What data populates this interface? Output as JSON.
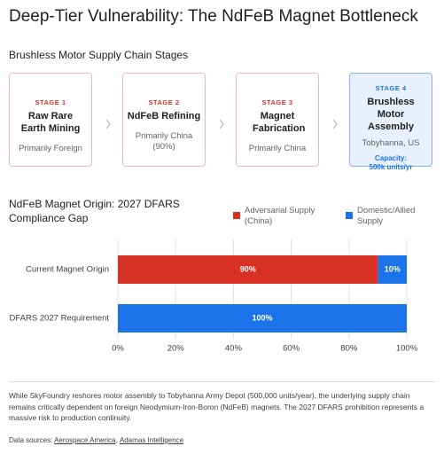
{
  "title": "Deep-Tier Vulnerability: The NdFeB Magnet Bottleneck",
  "stages_section": {
    "title": "Brushless Motor Supply Chain Stages",
    "stages": [
      {
        "label": "STAGE 1",
        "name": "Raw Rare Earth Mining",
        "origin": "Primarily Foreign"
      },
      {
        "label": "STAGE 2",
        "name": "NdFeB Refining",
        "origin": "Primarily China (90%)"
      },
      {
        "label": "STAGE 3",
        "name": "Magnet Fabrication",
        "origin": "Primarily China"
      },
      {
        "label": "STAGE 4",
        "name": "Brushless Motor Assembly",
        "origin": "Tobyhanna, US",
        "capacity": "Capacity: 500k units/yr"
      }
    ]
  },
  "chart_data": {
    "type": "bar",
    "orientation": "horizontal",
    "stacked": true,
    "title": "NdFeB Magnet Origin: 2027 DFARS Compliance Gap",
    "categories": [
      "Current Magnet Origin",
      "DFARS 2027 Requirement"
    ],
    "series": [
      {
        "name": "Adversarial Supply (China)",
        "color": "#d93025",
        "values": [
          90,
          0
        ],
        "value_labels": [
          "90%",
          null
        ]
      },
      {
        "name": "Domestic/Allied Supply",
        "color": "#1a73e8",
        "values": [
          10,
          100
        ],
        "value_labels": [
          "10%",
          "100%"
        ]
      }
    ],
    "xlim": [
      0,
      100
    ],
    "xticks": [
      {
        "value": 0,
        "label": "0%"
      },
      {
        "value": 20,
        "label": "20%"
      },
      {
        "value": 40,
        "label": "40%"
      },
      {
        "value": 60,
        "label": "60%"
      },
      {
        "value": 80,
        "label": "80%"
      },
      {
        "value": 100,
        "label": "100%"
      }
    ],
    "grid": true,
    "legend_position": "top-right"
  },
  "footer": {
    "text": "While SkyFoundry reshores motor assembly to Tobyhanna Army Depot (500,000 units/year), the underlying supply chain remains critically dependent on foreign Neodymium-Iron-Boron (NdFeB) magnets. The 2027 DFARS prohibition represents a massive risk to production continuity.",
    "sources_label": "Data sources:",
    "sources": [
      "Aerospace America",
      "Adamas Intelligence"
    ]
  }
}
